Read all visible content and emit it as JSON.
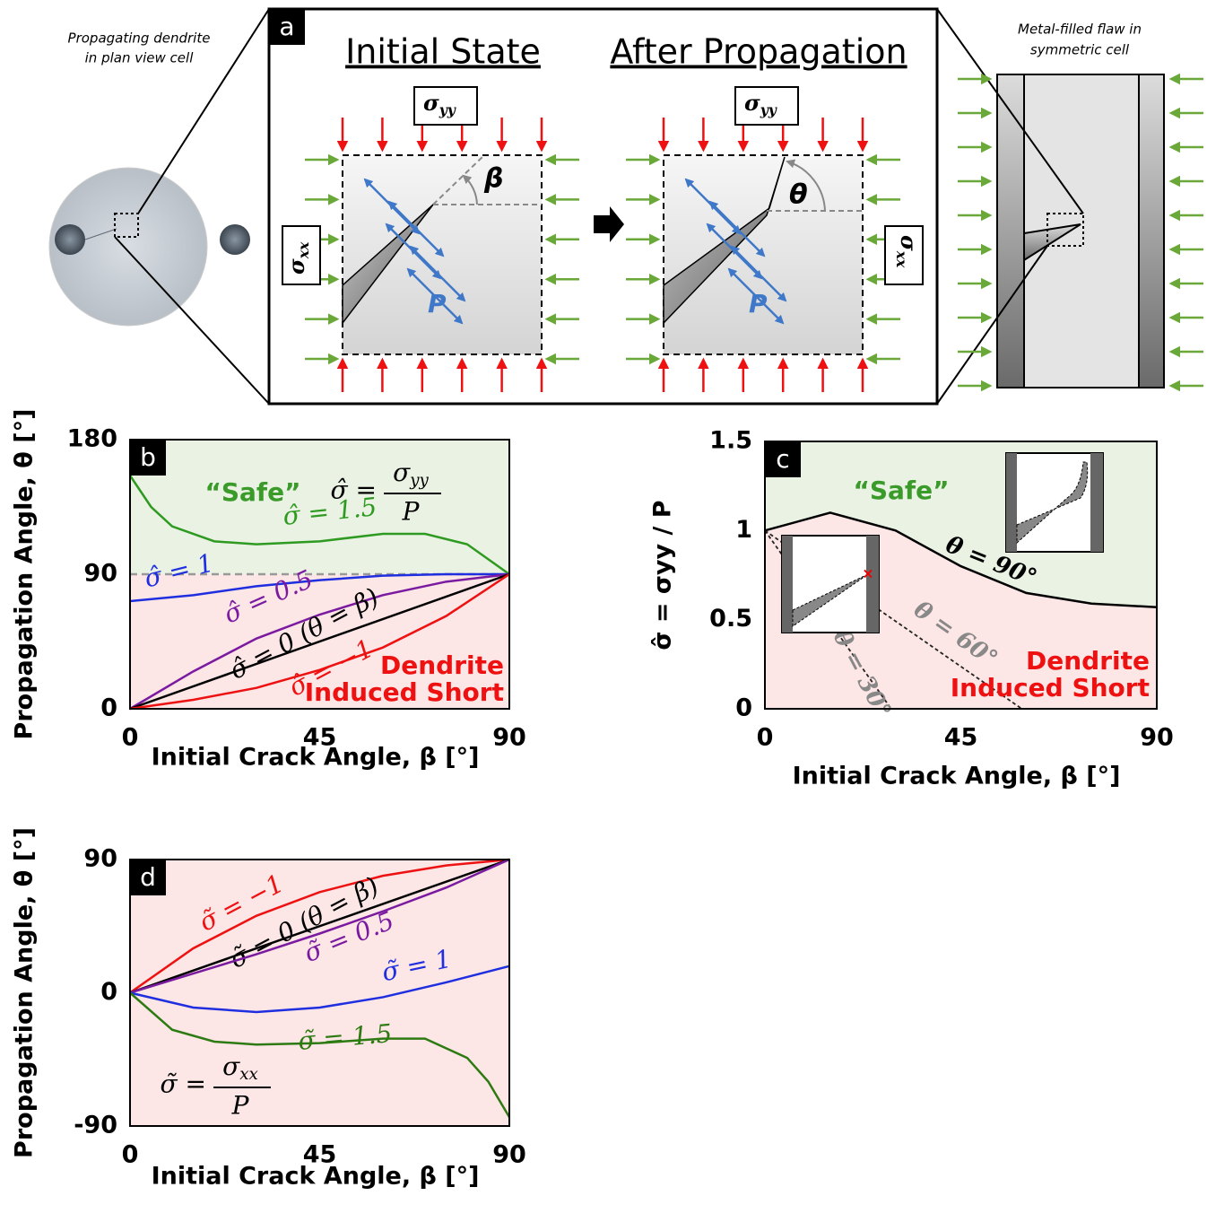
{
  "diagram": {
    "label": "a",
    "initial_title": "Initial State",
    "after_title": "After Propagation",
    "left_caption": [
      "Propagating dendrite",
      "in plan view cell"
    ],
    "right_caption": [
      "Metal-filled flaw in",
      "symmetric cell"
    ],
    "sigma": "σ",
    "sub_yy": "yy",
    "sub_xx": "xx",
    "beta": "β",
    "theta": "θ",
    "pressure": "P"
  },
  "chart_data": [
    {
      "type": "line",
      "label": "b",
      "xlabel": "Initial Crack Angle, β [°]",
      "ylabel": "Propagation Angle, θ [°]",
      "xlim": [
        0,
        90
      ],
      "ylim": [
        0,
        180
      ],
      "xticks": [
        0,
        45,
        90
      ],
      "yticks": [
        0,
        90,
        180
      ],
      "threshold": 90,
      "safe_color": "#eaf3e3",
      "short_color": "#fde6e6",
      "safe_text": "“Safe”",
      "short_text": [
        "Dendrite",
        "Induced Short"
      ],
      "formula": {
        "lhs": "σ̂ =",
        "num": "σ",
        "num_sub": "yy",
        "den": "P"
      },
      "series": [
        {
          "name": "σ̂ = 1.5",
          "color": "#2e9a22",
          "x": [
            0,
            5,
            10,
            20,
            30,
            45,
            60,
            70,
            80,
            90
          ],
          "values": [
            156,
            135,
            122,
            112,
            110,
            112,
            117,
            117,
            110,
            90
          ]
        },
        {
          "name": "σ̂ = 1",
          "color": "#1f2fe0",
          "x": [
            0,
            15,
            30,
            45,
            60,
            75,
            90
          ],
          "values": [
            72,
            76,
            82,
            86,
            89,
            90,
            90
          ]
        },
        {
          "name": "σ̂ = 0.5",
          "color": "#7a1aa0",
          "x": [
            0,
            15,
            30,
            45,
            60,
            75,
            90
          ],
          "values": [
            0,
            25,
            47,
            63,
            76,
            85,
            90
          ]
        },
        {
          "name": "σ̂ = 0 (θ = β)",
          "color": "#000000",
          "x": [
            0,
            90
          ],
          "values": [
            0,
            90
          ]
        },
        {
          "name": "σ̂ = −1",
          "color": "#ee1111",
          "x": [
            0,
            15,
            30,
            45,
            60,
            75,
            90
          ],
          "values": [
            0,
            6,
            14,
            26,
            41,
            62,
            90
          ]
        }
      ]
    },
    {
      "type": "line",
      "label": "c",
      "xlabel": "Initial Crack Angle, β [°]",
      "ylabel": "σ̂ = σyy / P",
      "xlim": [
        0,
        90
      ],
      "ylim": [
        0,
        1.5
      ],
      "xticks": [
        0,
        45,
        90
      ],
      "yticks": [
        0,
        0.5,
        1,
        1.5
      ],
      "safe_color": "#eaf3e3",
      "short_color": "#fde6e6",
      "safe_text": "“Safe”",
      "short_text": [
        "Dendrite",
        "Induced Short"
      ],
      "series": [
        {
          "name": "θ = 90°",
          "color": "#000000",
          "dash": false,
          "x": [
            0,
            15,
            30,
            45,
            60,
            75,
            90
          ],
          "values": [
            1.0,
            1.1,
            1.0,
            0.8,
            0.65,
            0.59,
            0.57
          ]
        },
        {
          "name": "θ = 60°",
          "color": "#222222",
          "dash": true,
          "x": [
            0,
            59
          ],
          "values": [
            1.0,
            0
          ]
        },
        {
          "name": "θ = 30°",
          "color": "#222222",
          "dash": true,
          "x": [
            0,
            29
          ],
          "values": [
            1.0,
            0
          ]
        }
      ]
    },
    {
      "type": "line",
      "label": "d",
      "xlabel": "Initial Crack Angle, β [°]",
      "ylabel": "Propagation Angle, θ [°]",
      "xlim": [
        0,
        90
      ],
      "ylim": [
        -90,
        90
      ],
      "xticks": [
        0,
        45,
        90
      ],
      "yticks": [
        -90,
        0,
        90
      ],
      "short_color": "#fde6e6",
      "formula": {
        "lhs": "σ̃ =",
        "num": "σ",
        "num_sub": "xx",
        "den": "P"
      },
      "series": [
        {
          "name": "σ̃ = −1",
          "color": "#ee1111",
          "x": [
            0,
            15,
            30,
            45,
            60,
            75,
            90
          ],
          "values": [
            0,
            30,
            52,
            68,
            79,
            86,
            90
          ]
        },
        {
          "name": "σ̃ = 0 (θ = β)",
          "color": "#000000",
          "x": [
            0,
            90
          ],
          "values": [
            0,
            90
          ]
        },
        {
          "name": "σ̃ = 0.5",
          "color": "#7a1aa0",
          "x": [
            0,
            15,
            30,
            45,
            60,
            75,
            90
          ],
          "values": [
            0,
            13,
            26,
            40,
            55,
            71,
            90
          ]
        },
        {
          "name": "σ̃  = 1",
          "color": "#1f2fe0",
          "x": [
            0,
            15,
            30,
            45,
            60,
            75,
            90
          ],
          "values": [
            0,
            -10,
            -13,
            -10,
            -3,
            7,
            18
          ]
        },
        {
          "name": "σ̃ = 1.5",
          "color": "#2e7a12",
          "x": [
            0,
            10,
            20,
            30,
            45,
            60,
            70,
            80,
            85,
            90
          ],
          "values": [
            0,
            -25,
            -33,
            -35,
            -34,
            -31,
            -31,
            -44,
            -60,
            -84
          ]
        }
      ]
    }
  ]
}
